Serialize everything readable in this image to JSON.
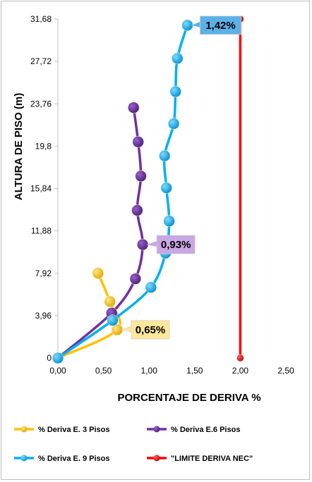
{
  "chart_data": {
    "type": "scatter",
    "xlabel": "PORCENTAJE DE DERIVA %",
    "ylabel": "ALTURA DE PISO (m)",
    "xlim": [
      0,
      2.5
    ],
    "ylim": [
      0,
      31.68
    ],
    "x_ticks": [
      "0,00",
      "0,50",
      "1,00",
      "1,50",
      "2,00",
      "2,50"
    ],
    "y_ticks": [
      "0",
      "3,96",
      "7,92",
      "11,88",
      "15,84",
      "19,8",
      "23,76",
      "27,72",
      "31,68"
    ],
    "grid": false,
    "legend_position": "bottom",
    "series": [
      {
        "name": "% Deriva E. 3 Pisos",
        "color": "#FFC000",
        "points": [
          [
            0,
            0
          ],
          [
            0.65,
            2.64
          ],
          [
            0.57,
            5.28
          ],
          [
            0.44,
            7.92
          ]
        ]
      },
      {
        "name": "% Deriva E.6 Pisos",
        "color": "#7030A0",
        "points": [
          [
            0,
            0
          ],
          [
            0.59,
            4.2
          ],
          [
            0.85,
            7.4
          ],
          [
            0.93,
            10.6
          ],
          [
            0.87,
            13.8
          ],
          [
            0.91,
            17.0
          ],
          [
            0.88,
            20.2
          ],
          [
            0.83,
            23.4
          ]
        ]
      },
      {
        "name": "% Deriva  E. 9 Pisos",
        "color": "#00B0F0",
        "points": [
          [
            0,
            0
          ],
          [
            0.6,
            3.52
          ],
          [
            1.02,
            6.6
          ],
          [
            1.18,
            9.8
          ],
          [
            1.22,
            12.8
          ],
          [
            1.19,
            15.9
          ],
          [
            1.17,
            18.9
          ],
          [
            1.27,
            21.9
          ],
          [
            1.29,
            24.9
          ],
          [
            1.31,
            28.0
          ],
          [
            1.42,
            31.1
          ]
        ]
      },
      {
        "name": "\"LIMITE DERIVA NEC\"",
        "color": "#FF0000",
        "points": [
          [
            2.0,
            0
          ],
          [
            2.0,
            31.68
          ]
        ]
      }
    ],
    "annotations": [
      {
        "text": "0,65%",
        "fill": "#FFE699",
        "x": 0.65,
        "y": 2.64
      },
      {
        "text": "0,93%",
        "fill": "#C9A6E4",
        "x": 0.93,
        "y": 10.6
      },
      {
        "text": "1,42%",
        "fill": "#5BB1E7",
        "x": 1.42,
        "y": 31.1
      }
    ]
  }
}
